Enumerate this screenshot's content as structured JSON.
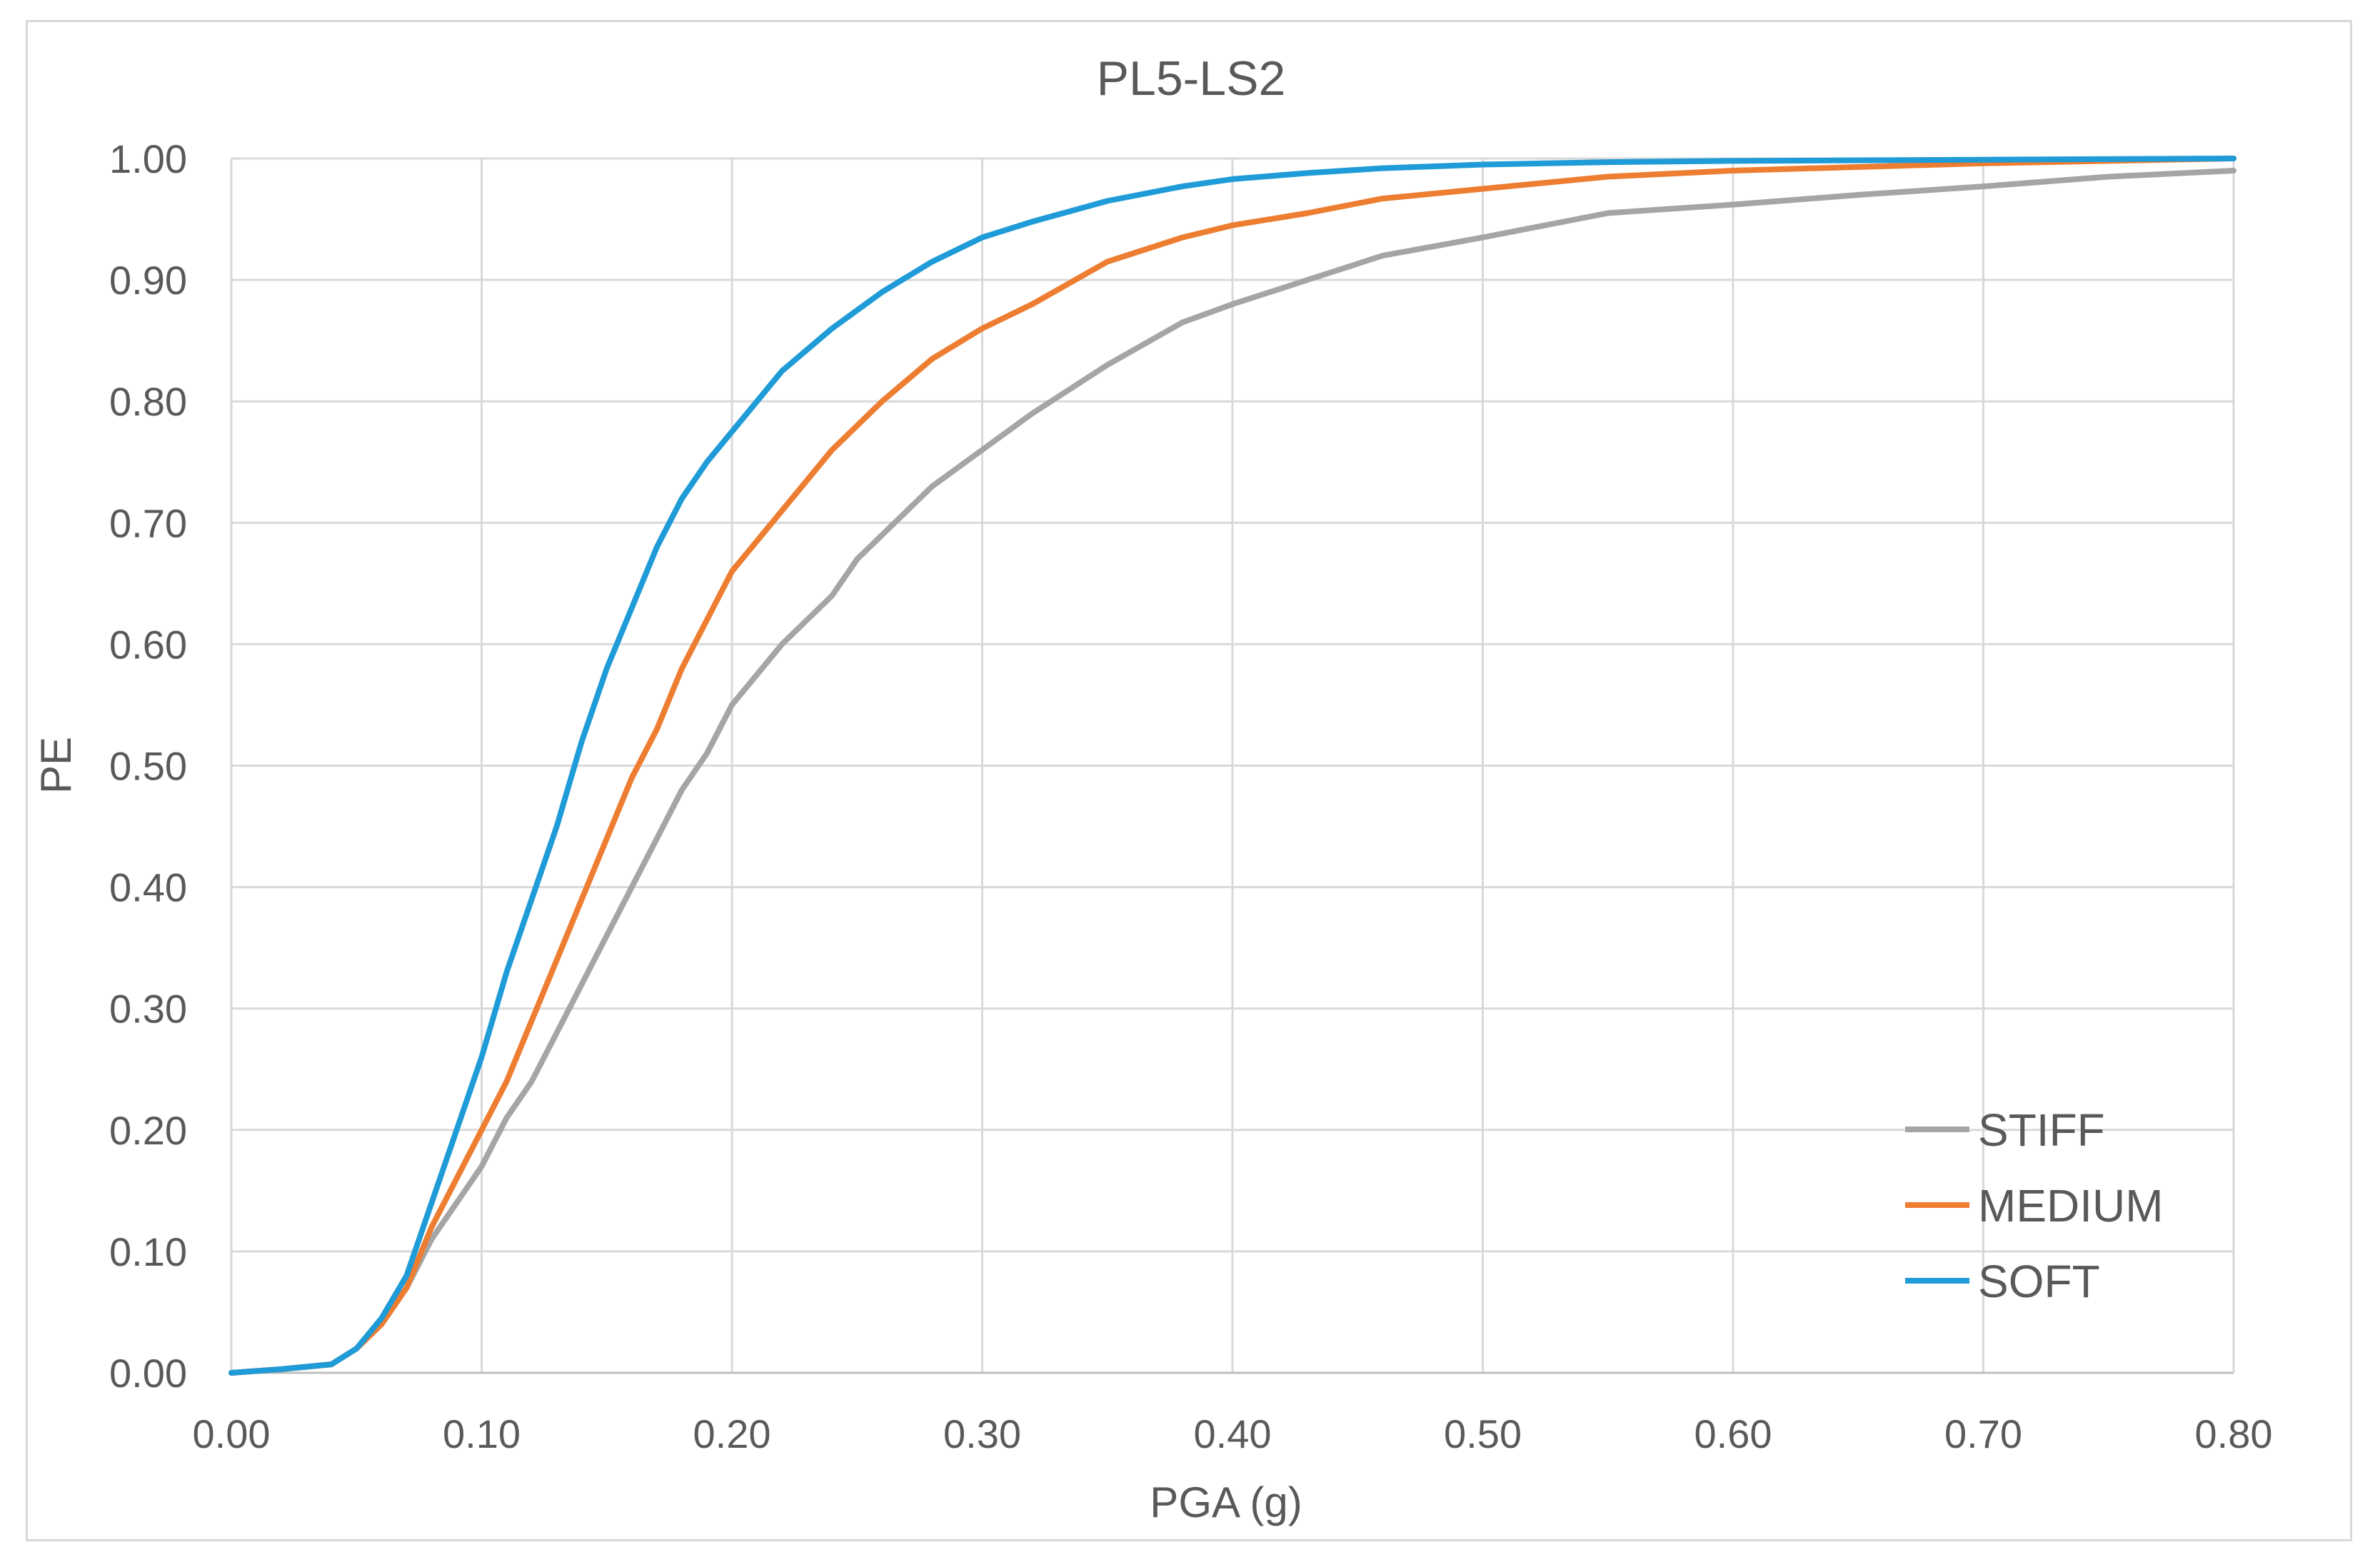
{
  "chart_data": {
    "type": "line",
    "title": "PL5-LS2",
    "xlabel": "PGA (g)",
    "ylabel": "PE",
    "xlim": [
      0,
      0.8
    ],
    "ylim": [
      0,
      1
    ],
    "x_ticks": [
      "0.00",
      "0.10",
      "0.20",
      "0.30",
      "0.40",
      "0.50",
      "0.60",
      "0.70",
      "0.80"
    ],
    "y_ticks": [
      "0.00",
      "0.10",
      "0.20",
      "0.30",
      "0.40",
      "0.50",
      "0.60",
      "0.70",
      "0.80",
      "0.90",
      "1.00"
    ],
    "grid": true,
    "legend_position": "bottom-right",
    "series": [
      {
        "name": "STIFF",
        "color": "#a5a5a5",
        "points": [
          [
            0.0,
            0.0
          ],
          [
            0.02,
            0.003
          ],
          [
            0.04,
            0.007
          ],
          [
            0.05,
            0.02
          ],
          [
            0.06,
            0.04
          ],
          [
            0.07,
            0.07
          ],
          [
            0.08,
            0.11
          ],
          [
            0.09,
            0.14
          ],
          [
            0.1,
            0.17
          ],
          [
            0.11,
            0.21
          ],
          [
            0.12,
            0.24
          ],
          [
            0.13,
            0.28
          ],
          [
            0.14,
            0.32
          ],
          [
            0.15,
            0.36
          ],
          [
            0.16,
            0.4
          ],
          [
            0.17,
            0.44
          ],
          [
            0.18,
            0.48
          ],
          [
            0.19,
            0.51
          ],
          [
            0.2,
            0.55
          ],
          [
            0.22,
            0.6
          ],
          [
            0.24,
            0.64
          ],
          [
            0.25,
            0.67
          ],
          [
            0.28,
            0.73
          ],
          [
            0.3,
            0.76
          ],
          [
            0.32,
            0.79
          ],
          [
            0.35,
            0.83
          ],
          [
            0.38,
            0.865
          ],
          [
            0.4,
            0.88
          ],
          [
            0.43,
            0.9
          ],
          [
            0.46,
            0.92
          ],
          [
            0.5,
            0.935
          ],
          [
            0.55,
            0.955
          ],
          [
            0.6,
            0.962
          ],
          [
            0.65,
            0.97
          ],
          [
            0.7,
            0.977
          ],
          [
            0.75,
            0.985
          ],
          [
            0.8,
            0.99
          ]
        ]
      },
      {
        "name": "MEDIUM",
        "color": "#ed7d31",
        "points": [
          [
            0.0,
            0.0
          ],
          [
            0.02,
            0.003
          ],
          [
            0.04,
            0.007
          ],
          [
            0.05,
            0.02
          ],
          [
            0.06,
            0.04
          ],
          [
            0.07,
            0.07
          ],
          [
            0.08,
            0.12
          ],
          [
            0.09,
            0.16
          ],
          [
            0.1,
            0.2
          ],
          [
            0.11,
            0.24
          ],
          [
            0.12,
            0.29
          ],
          [
            0.13,
            0.34
          ],
          [
            0.14,
            0.39
          ],
          [
            0.15,
            0.44
          ],
          [
            0.16,
            0.49
          ],
          [
            0.17,
            0.53
          ],
          [
            0.18,
            0.58
          ],
          [
            0.19,
            0.62
          ],
          [
            0.2,
            0.66
          ],
          [
            0.22,
            0.71
          ],
          [
            0.24,
            0.76
          ],
          [
            0.26,
            0.8
          ],
          [
            0.28,
            0.835
          ],
          [
            0.3,
            0.86
          ],
          [
            0.32,
            0.88
          ],
          [
            0.35,
            0.915
          ],
          [
            0.38,
            0.935
          ],
          [
            0.4,
            0.945
          ],
          [
            0.43,
            0.955
          ],
          [
            0.46,
            0.967
          ],
          [
            0.5,
            0.975
          ],
          [
            0.55,
            0.985
          ],
          [
            0.6,
            0.99
          ],
          [
            0.7,
            0.996
          ],
          [
            0.8,
            1.0
          ]
        ]
      },
      {
        "name": "SOFT",
        "color": "#1f9bd7",
        "points": [
          [
            0.0,
            0.0
          ],
          [
            0.02,
            0.003
          ],
          [
            0.04,
            0.007
          ],
          [
            0.05,
            0.02
          ],
          [
            0.06,
            0.045
          ],
          [
            0.07,
            0.08
          ],
          [
            0.08,
            0.14
          ],
          [
            0.09,
            0.2
          ],
          [
            0.1,
            0.26
          ],
          [
            0.11,
            0.33
          ],
          [
            0.12,
            0.39
          ],
          [
            0.13,
            0.45
          ],
          [
            0.14,
            0.52
          ],
          [
            0.15,
            0.58
          ],
          [
            0.16,
            0.63
          ],
          [
            0.17,
            0.68
          ],
          [
            0.18,
            0.72
          ],
          [
            0.19,
            0.75
          ],
          [
            0.2,
            0.775
          ],
          [
            0.22,
            0.825
          ],
          [
            0.24,
            0.86
          ],
          [
            0.26,
            0.89
          ],
          [
            0.28,
            0.915
          ],
          [
            0.3,
            0.935
          ],
          [
            0.32,
            0.948
          ],
          [
            0.35,
            0.965
          ],
          [
            0.38,
            0.977
          ],
          [
            0.4,
            0.983
          ],
          [
            0.43,
            0.988
          ],
          [
            0.46,
            0.992
          ],
          [
            0.5,
            0.995
          ],
          [
            0.55,
            0.997
          ],
          [
            0.6,
            0.998
          ],
          [
            0.7,
            0.999
          ],
          [
            0.8,
            1.0
          ]
        ]
      }
    ]
  }
}
